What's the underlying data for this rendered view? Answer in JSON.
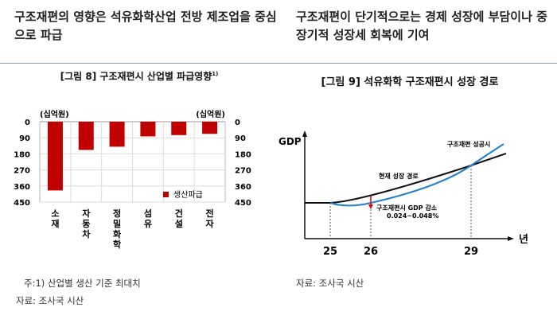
{
  "header": {
    "left": "구조재편의 영향은 석유화학산업 전방 제조업을 중심으로 파급",
    "right": "구조재편이 단기적으로는 경제 성장에 부담이나 중장기적 성장세 회복에 기여"
  },
  "chart_data": [
    {
      "type": "bar",
      "title": "[그림 8] 구조재편시 산업별 파급영향",
      "title_sup": "1)",
      "unit_left": "(십억원)",
      "unit_right": "(십억원)",
      "categories": [
        "소재",
        "자동차",
        "정밀화학",
        "섬유",
        "건설",
        "전자"
      ],
      "series": [
        {
          "name": "생산파급",
          "values": [
            385,
            158,
            140,
            82,
            75,
            68
          ],
          "color": "#c00000"
        }
      ],
      "ylim": [
        0,
        450
      ],
      "yticks": [
        0,
        90,
        180,
        270,
        360,
        450
      ],
      "y_inverted": true,
      "legend": "bottom-right"
    },
    {
      "type": "line",
      "title": "[그림 9] 석유화학 구조재편시 성장 경로",
      "ylabel": "GDP",
      "xlabel": "년",
      "xticks": [
        "25",
        "26",
        "29"
      ],
      "series": [
        {
          "name": "현재 성장 경로",
          "color": "#111111"
        },
        {
          "name": "구조재편 성공시",
          "color": "#1f7fd0"
        }
      ],
      "annotation": {
        "line1": "구조재편시 GDP 감소",
        "line2": "0.024~0.048%",
        "color": "#e00000"
      }
    }
  ],
  "notes": {
    "left1": "주:1) 산업별 생산 기준 최대치",
    "left2": "자료: 조사국 시산",
    "right1": "자료: 조사국 시산"
  }
}
